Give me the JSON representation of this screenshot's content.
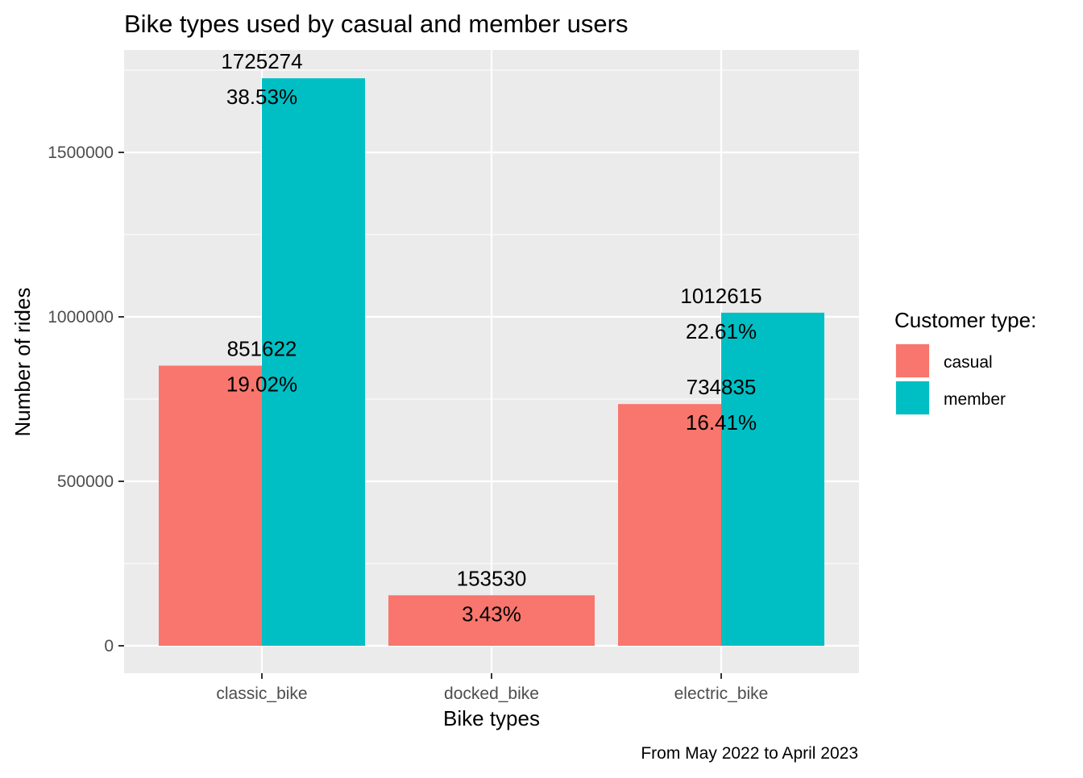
{
  "chart_data": {
    "type": "bar",
    "title": "Bike types used by casual and member users",
    "xlabel": "Bike types",
    "ylabel": "Number of rides",
    "caption": "From May 2022 to April 2023",
    "categories": [
      "classic_bike",
      "docked_bike",
      "electric_bike"
    ],
    "ylim": [
      -80000,
      1790000
    ],
    "yticks": [
      0,
      500000,
      1000000,
      1500000
    ],
    "ytick_labels": [
      "0",
      "500000",
      "1000000",
      "1500000"
    ],
    "grid": true,
    "legend": {
      "title": "Customer type:",
      "position": "right"
    },
    "series": [
      {
        "name": "casual",
        "color": "#F8766D",
        "values": [
          851622,
          153530,
          734835
        ],
        "percent_labels": [
          "19.02%",
          "3.43%",
          "16.41%"
        ]
      },
      {
        "name": "member",
        "color": "#00BFC4",
        "values": [
          1725274,
          null,
          1012615
        ],
        "percent_labels": [
          "38.53%",
          null,
          "22.61%"
        ]
      }
    ],
    "panel_background": "#EBEBEB",
    "grid_color": "#FFFFFF"
  }
}
